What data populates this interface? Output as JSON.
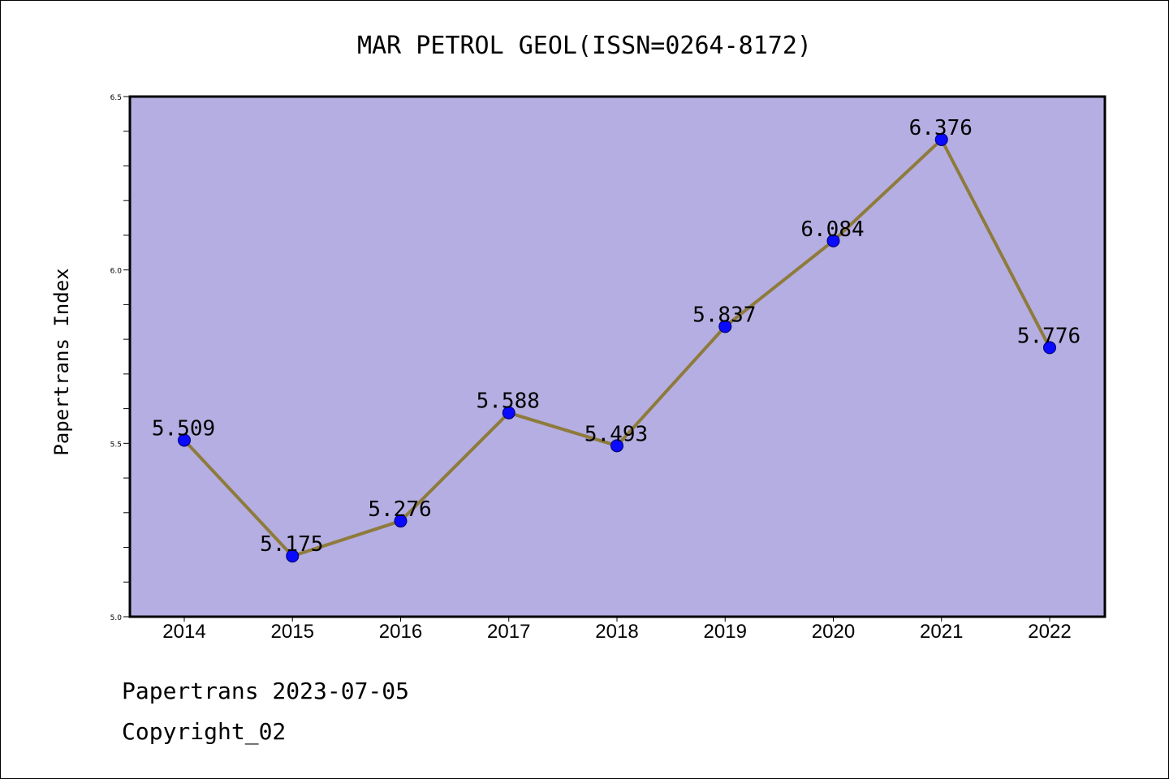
{
  "chart_data": {
    "type": "line",
    "title": "MAR PETROL GEOL(ISSN=0264-8172)",
    "xlabel": "",
    "ylabel": "Papertrans Index",
    "x": [
      "2014",
      "2015",
      "2016",
      "2017",
      "2018",
      "2019",
      "2020",
      "2021",
      "2022"
    ],
    "values": [
      5.509,
      5.175,
      5.276,
      5.588,
      5.493,
      5.837,
      6.084,
      6.376,
      5.776
    ],
    "data_labels": [
      "5.509",
      "5.175",
      "5.276",
      "5.588",
      "5.493",
      "5.837",
      "6.084",
      "6.376",
      "5.776"
    ],
    "ylim": [
      5.0,
      6.5
    ],
    "yticks": [
      5.0,
      5.5,
      6.0,
      6.5
    ],
    "ytick_labels": [
      "5.0",
      "5.5",
      "6.0",
      "6.5"
    ],
    "ytick_minor_step": 0.1,
    "grid": false,
    "colors": {
      "plot_background": "#b5aee2",
      "line": "#8e7b3c",
      "marker": "#0a0aff",
      "marker_edge": "#000066"
    }
  },
  "footer": {
    "line1": "Papertrans 2023-07-05",
    "line2": "Copyright_02"
  }
}
